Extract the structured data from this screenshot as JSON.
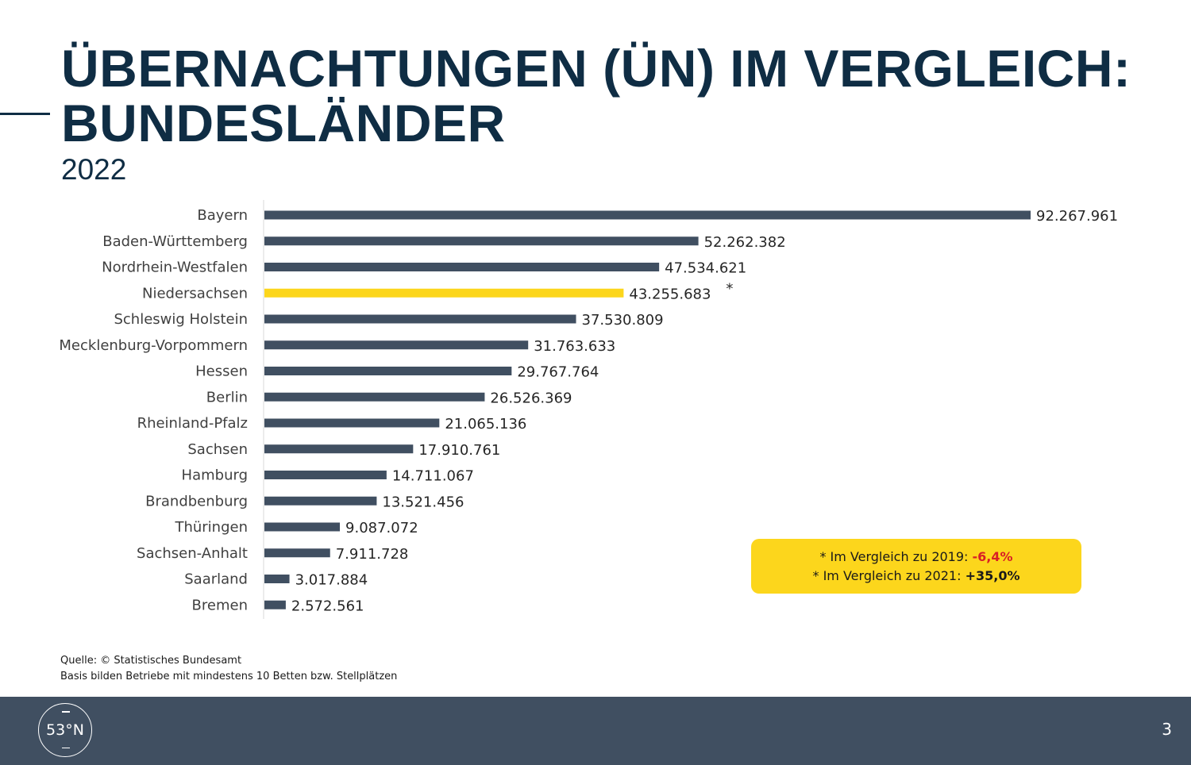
{
  "slide": {
    "title_line1": "ÜBERNACHTUNGEN (ÜN) IM VERGLEICH:",
    "title_line2": "BUNDESLÄNDER",
    "subtitle": "2022",
    "source_line1": "Quelle: © Statistisches Bundesamt",
    "source_line2": "Basis bilden Betriebe mit mindestens 10 Betten bzw. Stellplätzen",
    "logo_text": "53°N",
    "page_number": "3"
  },
  "callout": {
    "line1_prefix": "* Im Vergleich zu 2019: ",
    "line1_value": "-6,4%",
    "line2_prefix": "* Im Vergleich zu 2021: ",
    "line2_value": "+35,0%"
  },
  "colors": {
    "title": "#0f2d44",
    "bar": "#404f61",
    "highlight": "#fcd61c",
    "negative": "#d81f26",
    "footer": "#404f61"
  },
  "chart_data": {
    "type": "bar",
    "orientation": "horizontal",
    "categories": [
      "Bayern",
      "Baden-Württemberg",
      "Nordrhein-Westfalen",
      "Niedersachsen",
      "Schleswig Holstein",
      "Mecklenburg-Vorpommern",
      "Hessen",
      "Berlin",
      "Rheinland-Pfalz",
      "Sachsen",
      "Hamburg",
      "Brandbenburg",
      "Thüringen",
      "Sachsen-Anhalt",
      "Saarland",
      "Bremen"
    ],
    "values": [
      92267961,
      52262382,
      47534621,
      43255683,
      37530809,
      31763633,
      29767764,
      26526369,
      21065136,
      17910761,
      14711067,
      13521456,
      9087072,
      7911728,
      3017884,
      2572561
    ],
    "value_labels": [
      "92.267.961",
      "52.262.382",
      "47.534.621",
      "43.255.683",
      "37.530.809",
      "31.763.633",
      "29.767.764",
      "26.526.369",
      "21.065.136",
      "17.910.761",
      "14.711.067",
      "13.521.456",
      "9.087.072",
      "7.911.728",
      "3.017.884",
      "2.572.561"
    ],
    "highlight_category": "Niedersachsen",
    "highlight_marker": "*",
    "xlim": [
      0,
      92267961
    ],
    "grid": false,
    "axis_labels_visible": false
  }
}
